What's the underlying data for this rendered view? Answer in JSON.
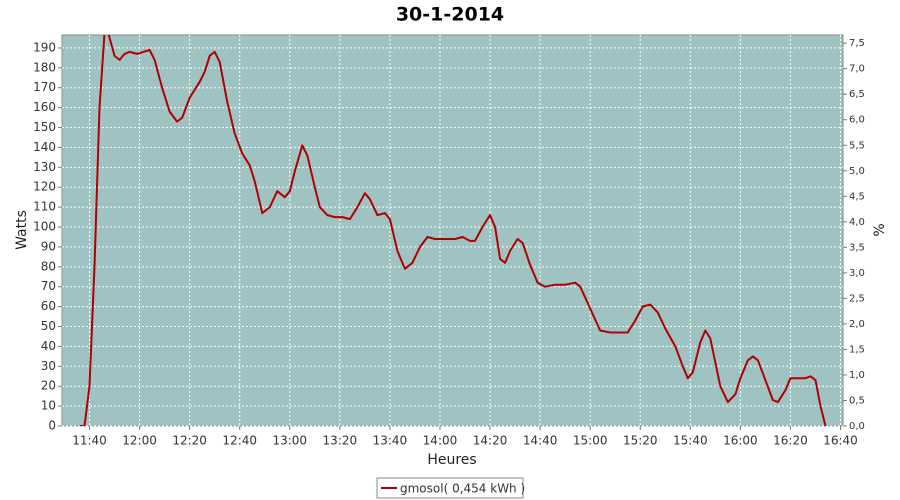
{
  "chart_data": {
    "type": "line",
    "title": "30-1-2014",
    "x_label": "Heures",
    "y_label": "Watts",
    "y2_label": "%",
    "x": [
      "11:36",
      "11:38",
      "11:40",
      "11:42",
      "11:44",
      "11:46",
      "11:47",
      "11:48",
      "11:50",
      "11:52",
      "11:54",
      "11:56",
      "11:59",
      "12:04",
      "12:06",
      "12:09",
      "12:12",
      "12:15",
      "12:17",
      "12:20",
      "12:24",
      "12:26",
      "12:28",
      "12:30",
      "12:32",
      "12:35",
      "12:38",
      "12:41",
      "12:44",
      "12:46",
      "12:49",
      "12:52",
      "12:55",
      "12:58",
      "13:00",
      "13:02",
      "13:05",
      "13:07",
      "13:10",
      "13:12",
      "13:15",
      "13:18",
      "13:21",
      "13:24",
      "13:27",
      "13:30",
      "13:32",
      "13:35",
      "13:38",
      "13:40",
      "13:43",
      "13:46",
      "13:49",
      "13:52",
      "13:55",
      "13:58",
      "14:02",
      "14:06",
      "14:09",
      "14:12",
      "14:14",
      "14:17",
      "14:20",
      "14:22",
      "14:24",
      "14:26",
      "14:28",
      "14:31",
      "14:33",
      "14:36",
      "14:39",
      "14:42",
      "14:46",
      "14:50",
      "14:54",
      "14:56",
      "15:00",
      "15:04",
      "15:08",
      "15:12",
      "15:15",
      "15:18",
      "15:21",
      "15:24",
      "15:27",
      "15:30",
      "15:34",
      "15:37",
      "15:39",
      "15:41",
      "15:44",
      "15:46",
      "15:48",
      "15:50",
      "15:52",
      "15:55",
      "15:58",
      "16:00",
      "16:03",
      "16:05",
      "16:07",
      "16:10",
      "16:13",
      "16:15",
      "16:18",
      "16:20",
      "16:23",
      "16:26",
      "16:28",
      "16:30",
      "16:32",
      "16:34"
    ],
    "series": [
      {
        "name": "gmosol( 0,454 kWh )",
        "color": "#b00000",
        "values": [
          0,
          0,
          20,
          80,
          160,
          198,
          200,
          195,
          186,
          184,
          187,
          188,
          187,
          189,
          184,
          170,
          158,
          153,
          155,
          165,
          173,
          178,
          186,
          188,
          183,
          163,
          147,
          137,
          131,
          123,
          107,
          110,
          118,
          115,
          118,
          128,
          141,
          136,
          120,
          110,
          106,
          105,
          105,
          104,
          110,
          117,
          114,
          106,
          107,
          104,
          88,
          79,
          82,
          90,
          95,
          94,
          94,
          94,
          95,
          93,
          93,
          100,
          106,
          100,
          84,
          82,
          88,
          94,
          92,
          81,
          72,
          70,
          71,
          71,
          72,
          70,
          59,
          48,
          47,
          47,
          47,
          53,
          60,
          61,
          57,
          49,
          40,
          30,
          24,
          27,
          42,
          48,
          44,
          32,
          20,
          12,
          16,
          24,
          33,
          35,
          33,
          23,
          13,
          12,
          18,
          24,
          24,
          24,
          25,
          23,
          10,
          0
        ]
      }
    ],
    "xlim": [
      "11:29",
      "16:41"
    ],
    "xticks": [
      "11:40",
      "12:00",
      "12:20",
      "12:40",
      "13:00",
      "13:20",
      "13:40",
      "14:00",
      "14:20",
      "14:40",
      "15:00",
      "15:20",
      "15:40",
      "16:00",
      "16:20",
      "16:40"
    ],
    "ylim": [
      0,
      196.5
    ],
    "yticks": [
      0,
      10,
      20,
      30,
      40,
      50,
      60,
      70,
      80,
      90,
      100,
      110,
      120,
      130,
      140,
      150,
      160,
      170,
      180,
      190
    ],
    "y2lim": [
      0,
      7.66
    ],
    "y2ticks": [
      {
        "value": 0,
        "label": "0,0"
      },
      {
        "value": 0.5,
        "label": "0,5"
      },
      {
        "value": 1,
        "label": "1,0"
      },
      {
        "value": 1.5,
        "label": "1,5"
      },
      {
        "value": 2,
        "label": "2,0"
      },
      {
        "value": 2.5,
        "label": "2,5"
      },
      {
        "value": 3,
        "label": "3,0"
      },
      {
        "value": 3.5,
        "label": "3,5"
      },
      {
        "value": 4,
        "label": "4,0"
      },
      {
        "value": 4.5,
        "label": "4,5"
      },
      {
        "value": 5,
        "label": "5,0"
      },
      {
        "value": 5.5,
        "label": "5,5"
      },
      {
        "value": 6,
        "label": "6,0"
      },
      {
        "value": 6.5,
        "label": "6,5"
      },
      {
        "value": 7,
        "label": "7,0"
      },
      {
        "value": 7.5,
        "label": "7,5"
      }
    ],
    "grid": true,
    "background": "#9fc3c3",
    "legend": "bottom"
  }
}
